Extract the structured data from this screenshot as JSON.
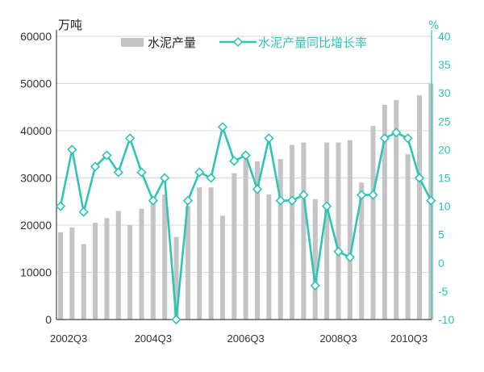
{
  "chart_data": {
    "type": "bar+line",
    "y_left_unit": "万吨",
    "y_right_unit": "%",
    "y_left_ticks": [
      "0",
      "10000",
      "20000",
      "30000",
      "40000",
      "50000",
      "60000"
    ],
    "y_right_ticks": [
      "-10",
      "-5",
      "0",
      "5",
      "10",
      "15",
      "20",
      "25",
      "30",
      "35",
      "40"
    ],
    "y_left_range": [
      0,
      60000
    ],
    "y_right_range": [
      -10,
      40
    ],
    "x_tick_labels": [
      "2002Q3",
      "2004Q3",
      "2006Q3",
      "2008Q3",
      "2010Q3"
    ],
    "x_tick_index": [
      0,
      8,
      16,
      24,
      32
    ],
    "categories": [
      "2002Q3",
      "2002Q4",
      "2003Q1",
      "2003Q2",
      "2003Q3",
      "2003Q4",
      "2004Q1",
      "2004Q2",
      "2004Q3",
      "2004Q4",
      "2005Q1",
      "2005Q2",
      "2005Q3",
      "2005Q4",
      "2006Q1",
      "2006Q2",
      "2006Q3",
      "2006Q4",
      "2007Q1",
      "2007Q2",
      "2007Q3",
      "2007Q4",
      "2008Q1",
      "2008Q2",
      "2008Q3",
      "2008Q4",
      "2009Q1",
      "2009Q2",
      "2009Q3",
      "2009Q4",
      "2010Q1",
      "2010Q2",
      "2010Q3"
    ],
    "series": [
      {
        "name": "水泥产量",
        "type": "bar",
        "axis": "left",
        "color": "#c4c4c4",
        "values": [
          18500,
          19500,
          16000,
          20500,
          21500,
          23000,
          20000,
          23500,
          25500,
          26500,
          17500,
          24000,
          28000,
          28000,
          22000,
          31000,
          35000,
          33500,
          26500,
          34000,
          37000,
          37500,
          25500,
          37500,
          37500,
          38000,
          29000,
          41000,
          45500,
          46500,
          35000,
          47500,
          50000
        ]
      },
      {
        "name": "水泥产量同比增长率",
        "type": "line",
        "axis": "right",
        "color": "#2ec4b6",
        "values": [
          10,
          20,
          9,
          17,
          19,
          16,
          22,
          16,
          11,
          15,
          -10,
          11,
          16,
          15,
          24,
          18,
          19,
          13,
          22,
          11,
          11,
          12,
          -4,
          10,
          2,
          1,
          12,
          12,
          22,
          23,
          22,
          15,
          11
        ]
      }
    ]
  }
}
